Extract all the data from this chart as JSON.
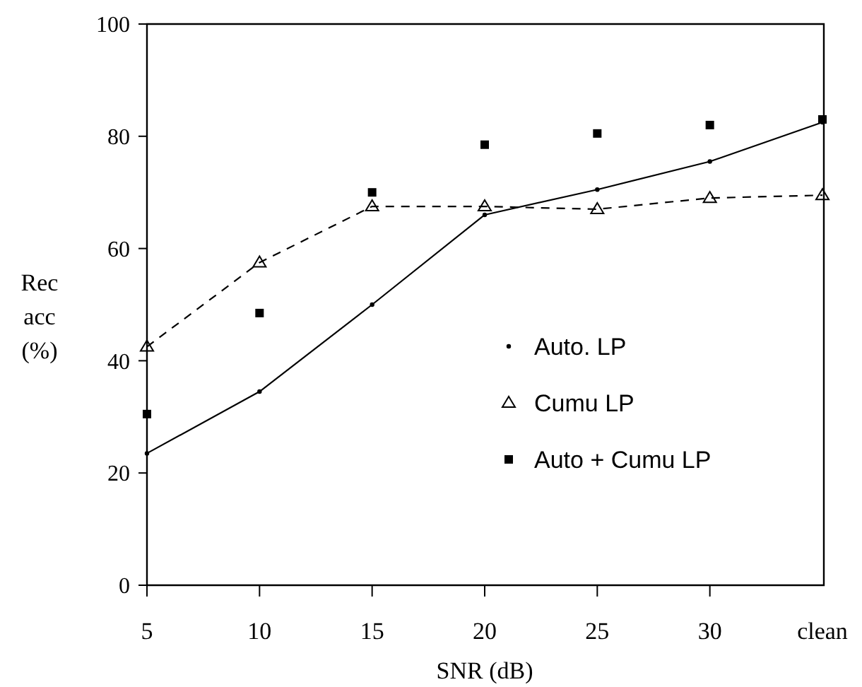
{
  "chart_data": {
    "type": "line",
    "xlabel": "SNR (dB)",
    "ylabel": "Rec acc (%)",
    "categories": [
      "5",
      "10",
      "15",
      "20",
      "25",
      "30",
      "clean"
    ],
    "ylim": [
      0,
      100
    ],
    "yticks": [
      0,
      20,
      40,
      60,
      80,
      100
    ],
    "grid": false,
    "legend": "right",
    "series": [
      {
        "name": "Auto. LP",
        "color": "#000000",
        "marker": "circle",
        "line_style": "solid",
        "values": [
          23.5,
          34.5,
          50,
          66,
          70.5,
          75.5,
          82.5
        ]
      },
      {
        "name": "Cumu  LP",
        "color": "#000000",
        "marker": "triangle",
        "line_style": "dashed",
        "values": [
          42.5,
          57.5,
          67.5,
          67.5,
          67,
          69,
          69.5
        ]
      },
      {
        "name": "Auto  + Cumu  LP",
        "type": "scatter",
        "color": "#000000",
        "marker": "square",
        "values": [
          30.5,
          48.5,
          70,
          78.5,
          80.5,
          82,
          83
        ]
      }
    ]
  }
}
